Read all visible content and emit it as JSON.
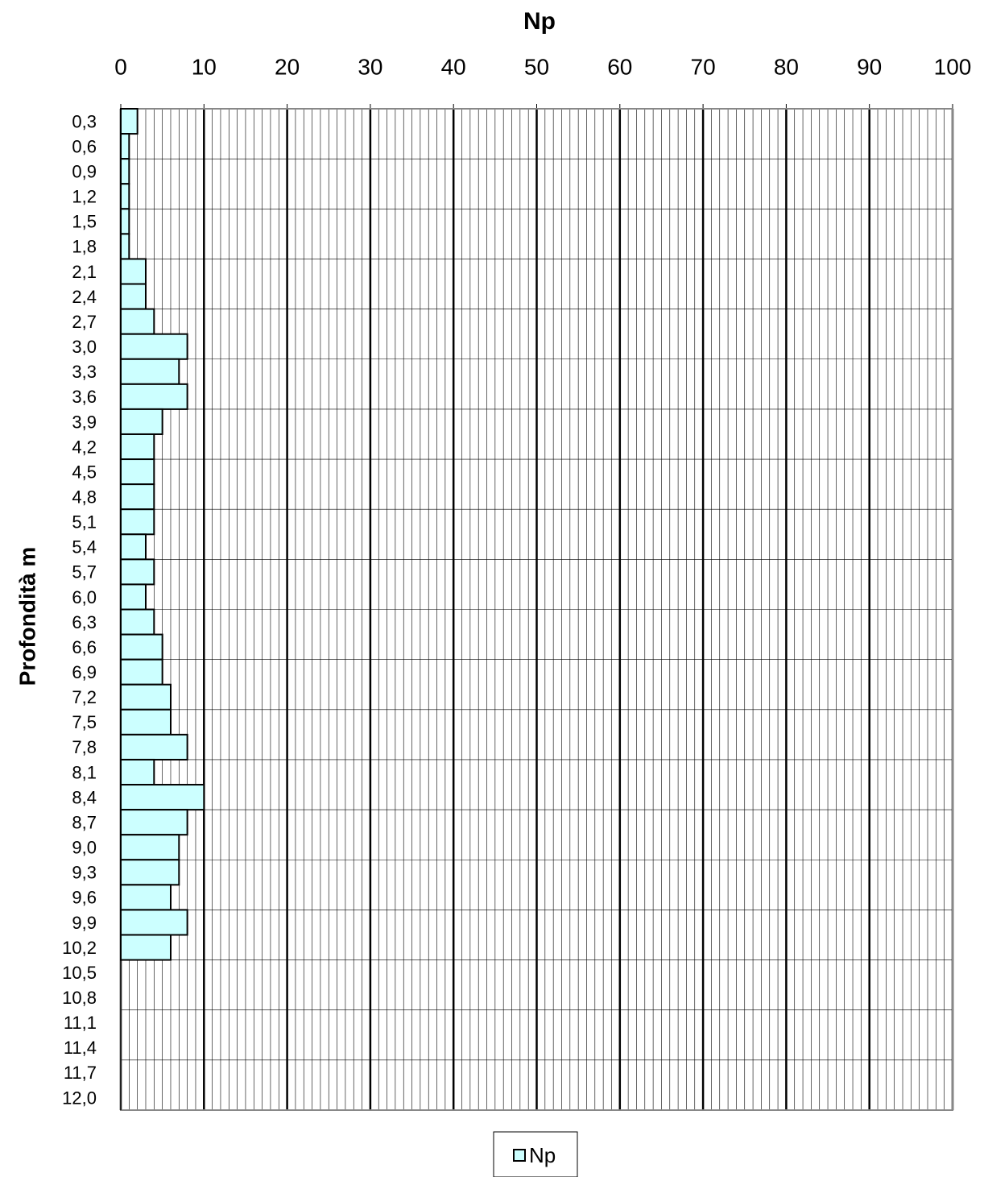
{
  "chart_data": {
    "type": "bar",
    "orientation": "horizontal",
    "title": "Np",
    "y_label": "Profondità m",
    "categories": [
      "0,3",
      "0,6",
      "0,9",
      "1,2",
      "1,5",
      "1,8",
      "2,1",
      "2,4",
      "2,7",
      "3,0",
      "3,3",
      "3,6",
      "3,9",
      "4,2",
      "4,5",
      "4,8",
      "5,1",
      "5,4",
      "5,7",
      "6,0",
      "6,3",
      "6,6",
      "6,9",
      "7,2",
      "7,5",
      "7,8",
      "8,1",
      "8,4",
      "8,7",
      "9,0",
      "9,3",
      "9,6",
      "9,9",
      "10,2",
      "10,5",
      "10,8",
      "11,1",
      "11,4",
      "11,7",
      "12,0"
    ],
    "series": [
      {
        "name": "Np",
        "color": "#ccffff",
        "values": [
          2,
          1,
          1,
          1,
          1,
          1,
          3,
          3,
          4,
          8,
          7,
          8,
          5,
          4,
          4,
          4,
          4,
          3,
          4,
          3,
          4,
          5,
          5,
          6,
          6,
          8,
          4,
          10,
          8,
          7,
          7,
          6,
          8,
          6,
          null,
          null,
          null,
          null,
          null,
          null
        ]
      }
    ],
    "xlim": [
      0,
      100
    ],
    "xticks": [
      0,
      10,
      20,
      30,
      40,
      50,
      60,
      70,
      80,
      90,
      100
    ],
    "x_axis_position": "top",
    "grid": true,
    "minor_grid_step": 1,
    "legend": "bottom"
  }
}
